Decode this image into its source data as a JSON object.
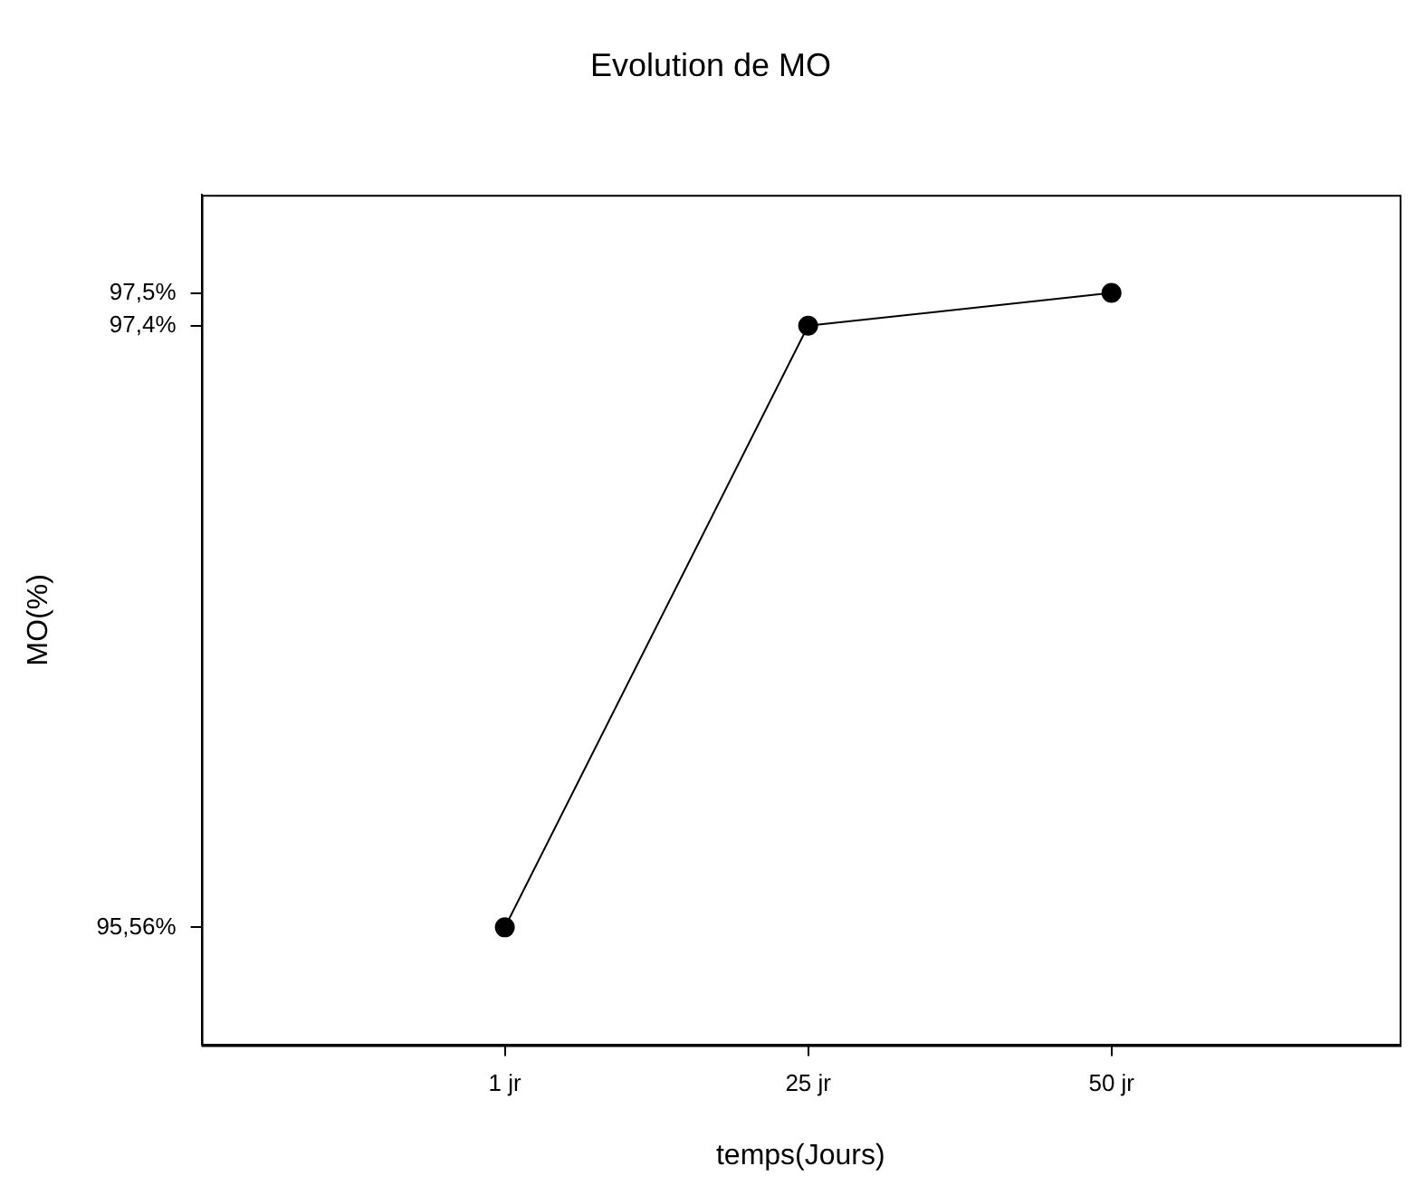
{
  "chart_data": {
    "type": "line",
    "title": "Evolution de MO",
    "xlabel": "temps(Jours)",
    "ylabel": "MO(%)",
    "categories": [
      "1 jr",
      "25 jr",
      "50 jr"
    ],
    "series": [
      {
        "color": "#000000",
        "values": [
          95.56,
          97.4,
          97.5
        ]
      }
    ],
    "ylim": [
      95.2,
      97.8
    ],
    "yticks": [
      {
        "value": 95.56,
        "label": "95,56%"
      },
      {
        "value": 97.4,
        "label": "97,4%"
      },
      {
        "value": 97.5,
        "label": "97,5%"
      }
    ],
    "grid": false,
    "legend": false,
    "marker": "circle",
    "line_style": "solid"
  }
}
